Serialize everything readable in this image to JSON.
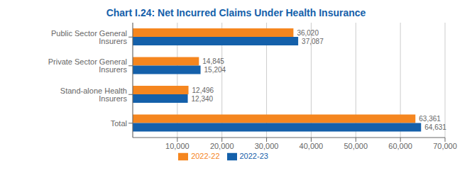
{
  "chart_data": {
    "type": "bar",
    "orientation": "horizontal",
    "title": "Chart I.24: Net Incurred Claims Under Health Insurance",
    "categories": [
      "Public Sector General Insurers",
      "Private Sector General Insurers",
      "Stand-alone Health Insurers",
      "Total"
    ],
    "series": [
      {
        "name": "2022-22",
        "color": "#F5861F",
        "values": [
          36020,
          14845,
          12496,
          63361
        ],
        "value_labels": [
          "36,020",
          "14,845",
          "12,496",
          "63,361"
        ]
      },
      {
        "name": "2022-23",
        "color": "#1460AA",
        "values": [
          37087,
          15204,
          12340,
          64631
        ],
        "value_labels": [
          "37,087",
          "15,204",
          "12,340",
          "64,631"
        ]
      }
    ],
    "xlim": [
      0,
      70000
    ],
    "xticks": [
      {
        "value": 10000,
        "label": "10,000"
      },
      {
        "value": 20000,
        "label": "20,000"
      },
      {
        "value": 30000,
        "label": "30,000"
      },
      {
        "value": 40000,
        "label": "40,000"
      },
      {
        "value": 50000,
        "label": "50,000"
      },
      {
        "value": 60000,
        "label": "60,000"
      },
      {
        "value": 70000,
        "label": "70,000"
      }
    ],
    "grid": true,
    "legend": "bottom",
    "data_labels": true
  }
}
